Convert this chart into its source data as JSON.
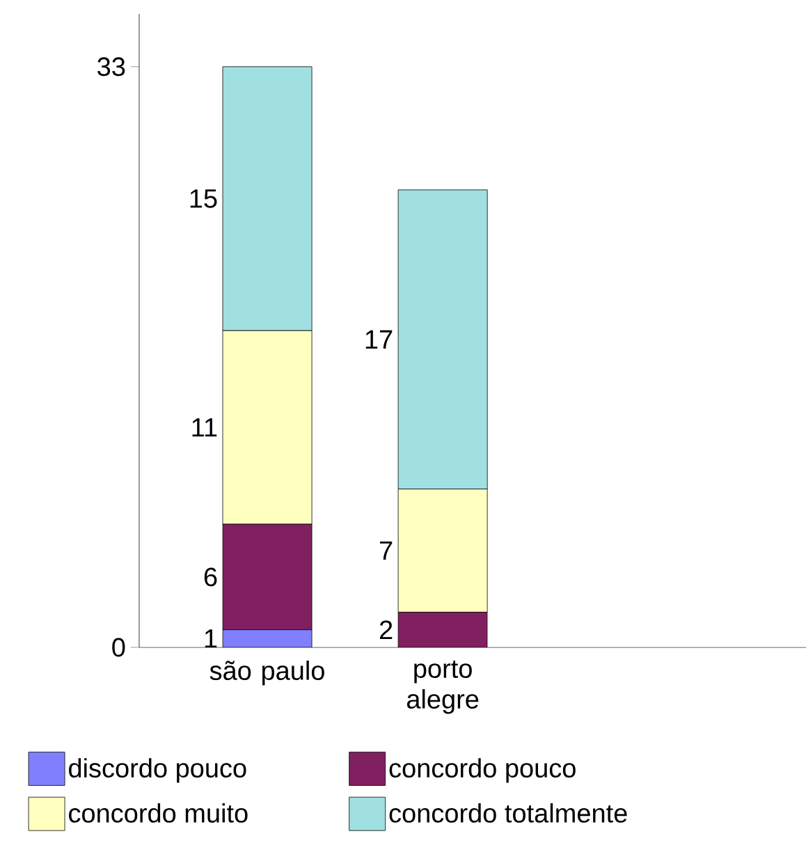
{
  "chart_data": {
    "type": "bar",
    "stacked": true,
    "categories": [
      "são paulo",
      "porto alegre"
    ],
    "series": [
      {
        "name": "discordo pouco",
        "color": "#8080ff",
        "values": [
          1,
          0
        ],
        "value_labels": [
          "1",
          null
        ]
      },
      {
        "name": "concordo pouco",
        "color": "#802060",
        "values": [
          6,
          2
        ],
        "value_labels": [
          "6",
          "2"
        ]
      },
      {
        "name": "concordo muito",
        "color": "#ffffc0",
        "values": [
          11,
          7
        ],
        "value_labels": [
          "11",
          "7"
        ]
      },
      {
        "name": "concordo totalmente",
        "color": "#a0e0e0",
        "values": [
          15,
          17
        ],
        "value_labels": [
          "15",
          "17"
        ]
      }
    ],
    "ylim": [
      0,
      36
    ],
    "yticks": [
      0,
      33
    ],
    "legend": "bottom"
  }
}
